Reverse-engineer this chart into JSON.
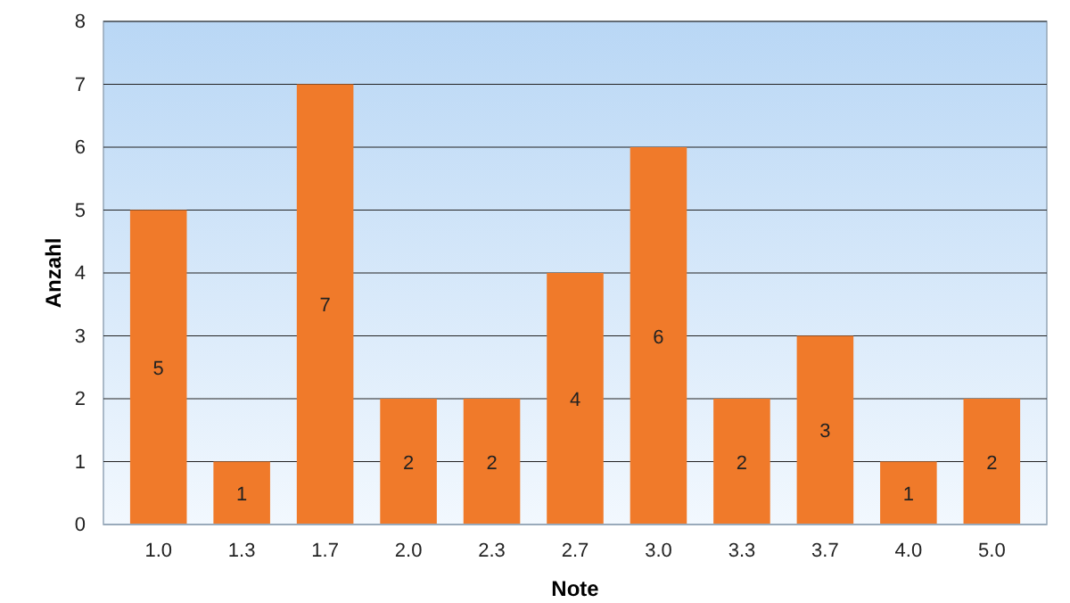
{
  "chart_data": {
    "type": "bar",
    "xlabel": "Note",
    "ylabel": "Anzahl",
    "categories": [
      "1.0",
      "1.3",
      "1.7",
      "2.0",
      "2.3",
      "2.7",
      "3.0",
      "3.3",
      "3.7",
      "4.0",
      "5.0"
    ],
    "values": [
      5,
      1,
      7,
      2,
      2,
      4,
      6,
      2,
      3,
      1,
      2
    ],
    "color": "#f07a2a",
    "ylim": [
      0,
      8
    ],
    "yticks": [
      0,
      1,
      2,
      3,
      4,
      5,
      6,
      7,
      8
    ],
    "grid": "y",
    "data_labels": true
  }
}
